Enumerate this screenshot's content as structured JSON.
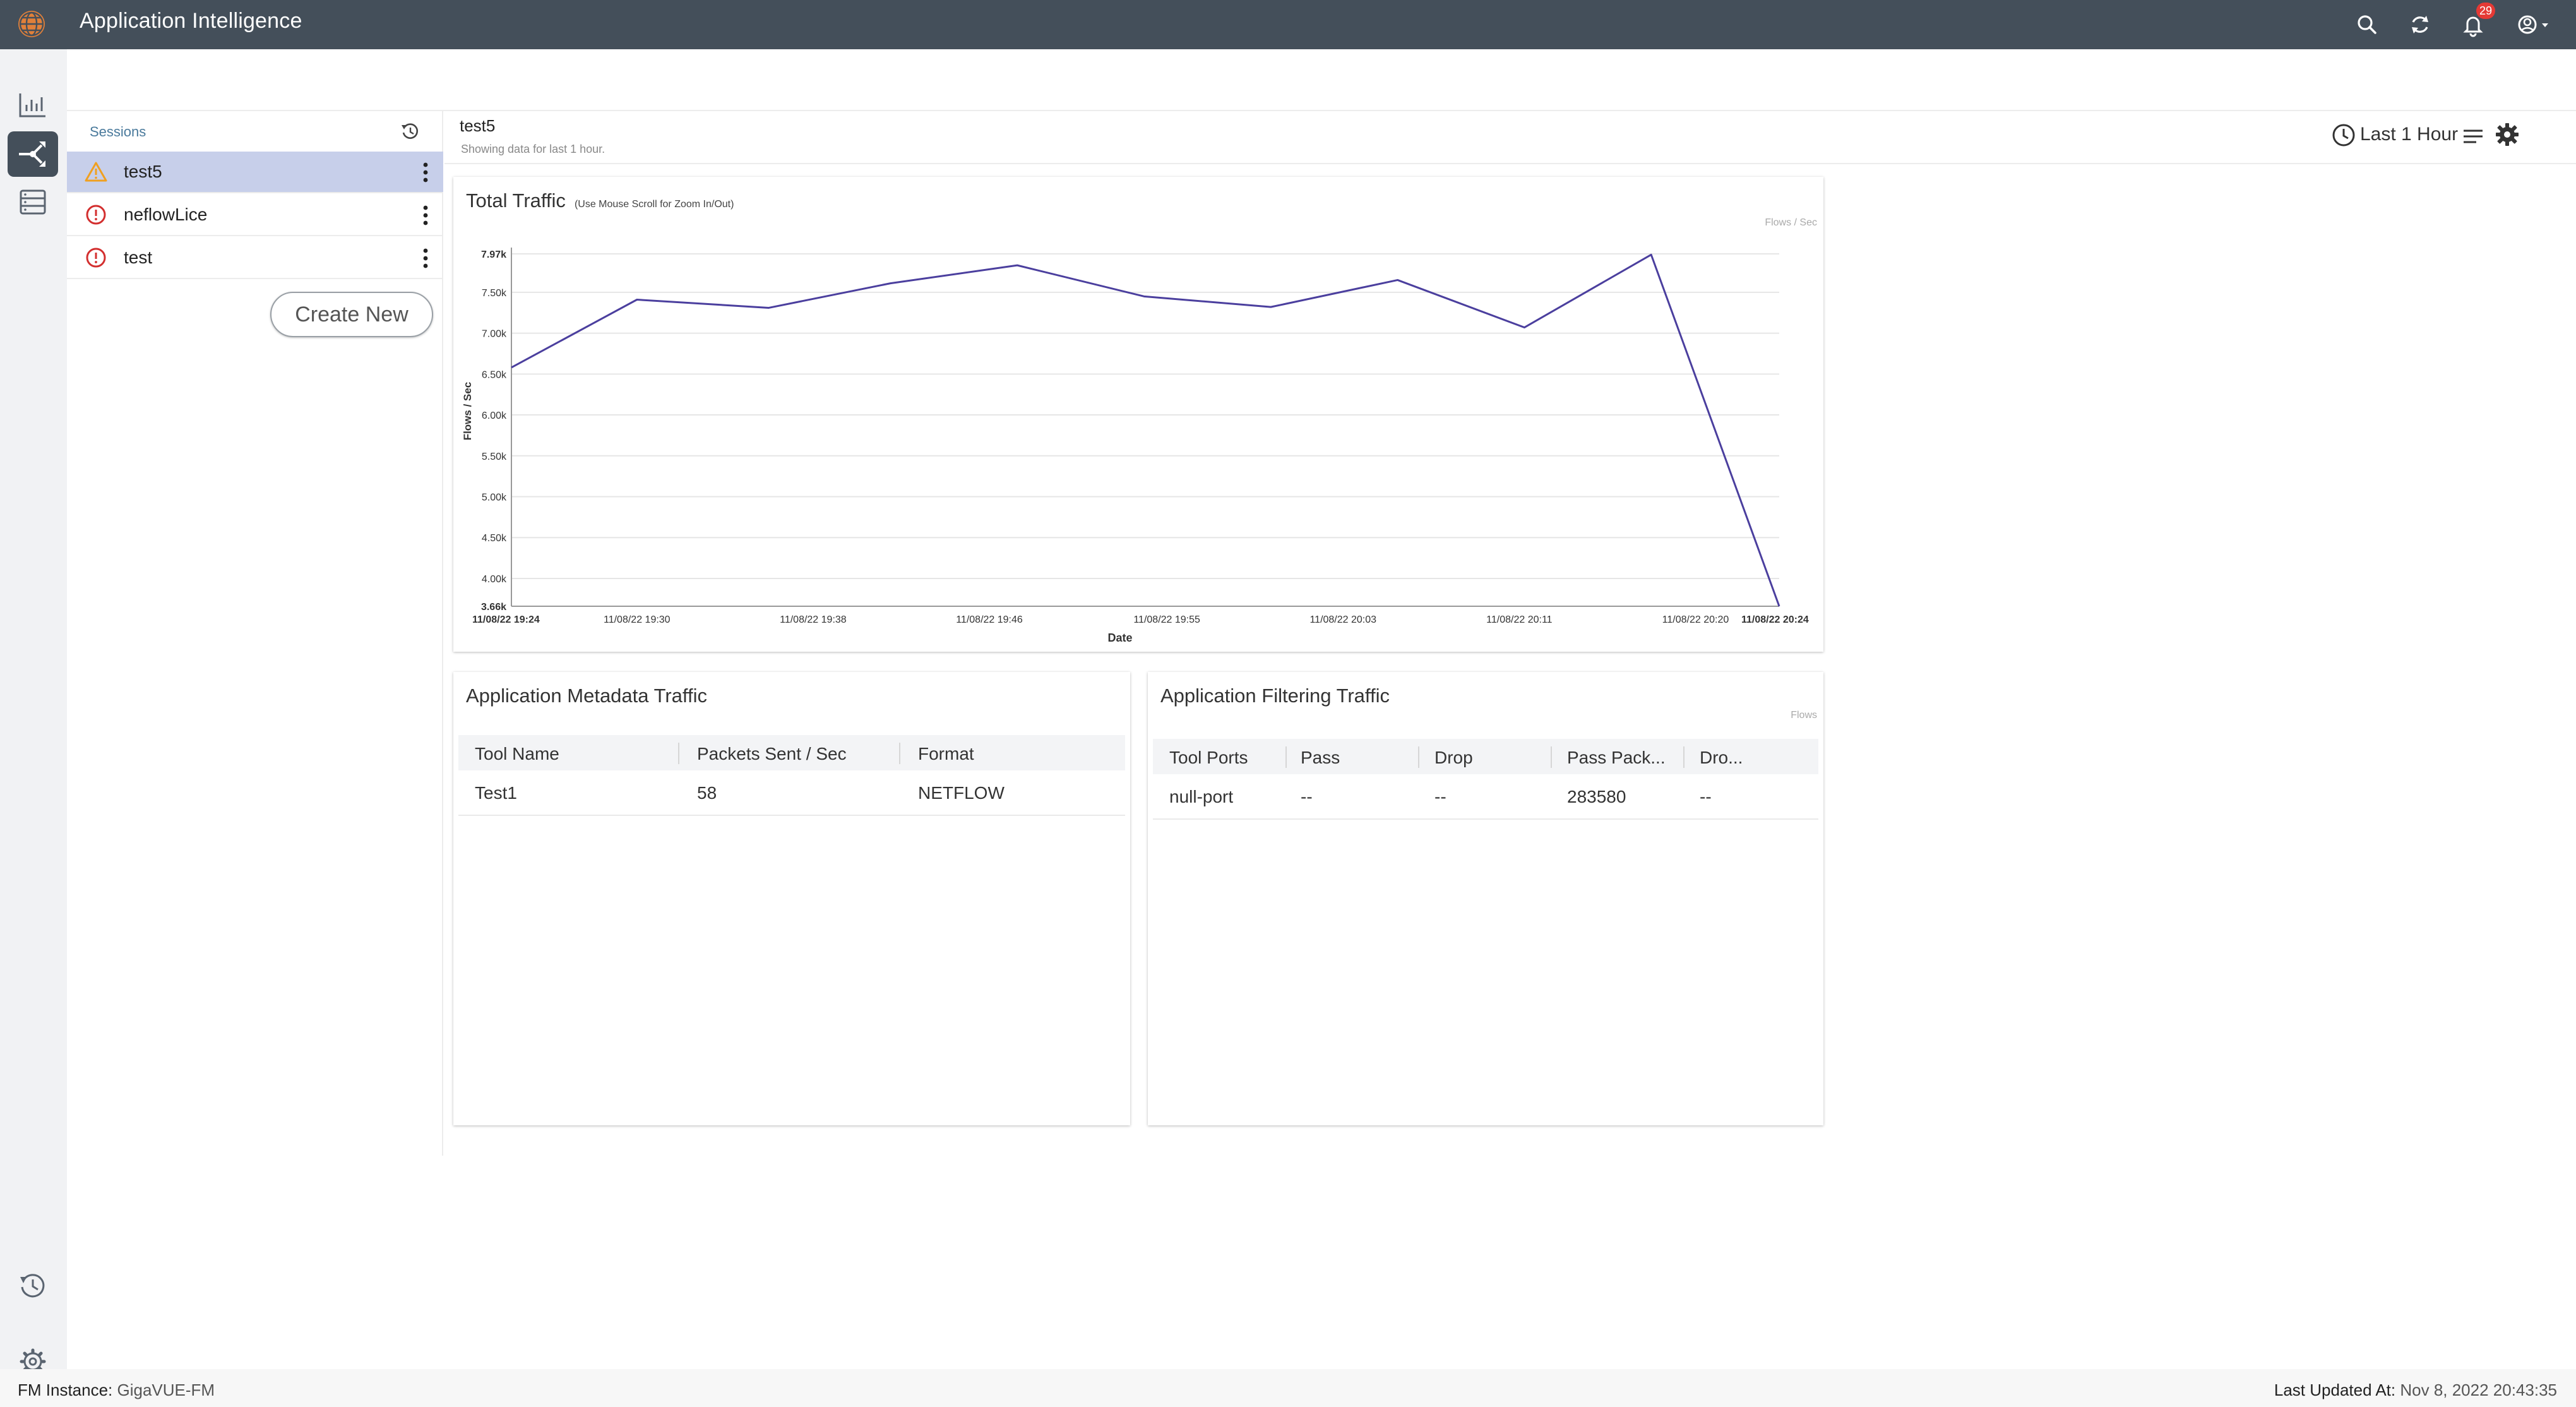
{
  "app": {
    "title": "Application Intelligence",
    "logo_icon": "globe-icon"
  },
  "topbar": {
    "icons": [
      "search-icon",
      "refresh-icon",
      "bell-icon",
      "account-icon"
    ],
    "notification_count": "29"
  },
  "rail": {
    "items": [
      "chart-icon",
      "flow-icon",
      "storage-icon",
      "history-icon",
      "settings-icon"
    ],
    "active": "flow-icon"
  },
  "sessions": {
    "title": "Sessions",
    "items": [
      {
        "label": "test5",
        "status": "warning",
        "selected": true
      },
      {
        "label": "neflowLice",
        "status": "error",
        "selected": false
      },
      {
        "label": "test",
        "status": "error",
        "selected": false
      }
    ],
    "create_label": "Create New"
  },
  "main": {
    "title": "test5",
    "subtitle": "Showing data for last 1 hour.",
    "time_range": "Last 1 Hour"
  },
  "traffic_card": {
    "title": "Total Traffic",
    "note": "(Use Mouse Scroll for Zoom In/Out)",
    "unit_tag": "Flows / Sec"
  },
  "chart_data": {
    "type": "line",
    "title": "Total Traffic",
    "xlabel": "Date",
    "ylabel": "Flows / Sec",
    "ylim": [
      3660,
      7970
    ],
    "y_ticks": [
      "3.66k",
      "4.00k",
      "4.50k",
      "5.00k",
      "5.50k",
      "6.00k",
      "6.50k",
      "7.00k",
      "7.50k",
      "7.97k"
    ],
    "y_tick_values": [
      3660,
      4000,
      4500,
      5000,
      5500,
      6000,
      6500,
      7000,
      7500,
      7970
    ],
    "x_ticks": [
      "11/08/22 19:24",
      "11/08/22 19:30",
      "11/08/22 19:38",
      "11/08/22 19:46",
      "11/08/22 19:55",
      "11/08/22 20:03",
      "11/08/22 20:11",
      "11/08/22 20:20",
      "11/08/22 20:24"
    ],
    "x_tick_fractions": [
      0.0,
      0.099,
      0.238,
      0.377,
      0.517,
      0.656,
      0.795,
      0.934,
      1.0
    ],
    "series": [
      {
        "color": "#4b3f9e",
        "x": [
          0.0,
          0.099,
          0.203,
          0.299,
          0.399,
          0.499,
          0.599,
          0.699,
          0.799,
          0.899,
          1.0
        ],
        "values": [
          6580,
          7410,
          7310,
          7610,
          7830,
          7450,
          7320,
          7650,
          7070,
          7960,
          3660
        ]
      }
    ],
    "grid": true
  },
  "metadata_card": {
    "title": "Application Metadata Traffic",
    "columns": [
      "Tool Name",
      "Packets Sent / Sec",
      "Format"
    ],
    "rows": [
      [
        "Test1",
        "58",
        "NETFLOW"
      ]
    ]
  },
  "filtering_card": {
    "title": "Application Filtering Traffic",
    "unit_tag": "Flows",
    "columns": [
      "Tool Ports",
      "Pass",
      "Drop",
      "Pass Pack...",
      "Dro..."
    ],
    "rows": [
      [
        "null-port",
        "--",
        "--",
        "283580",
        "--"
      ]
    ]
  },
  "footer": {
    "instance_label": "FM Instance:",
    "instance_value": "GigaVUE-FM",
    "updated_label": "Last Updated At:",
    "updated_value": "Nov 8, 2022 20:43:35"
  }
}
